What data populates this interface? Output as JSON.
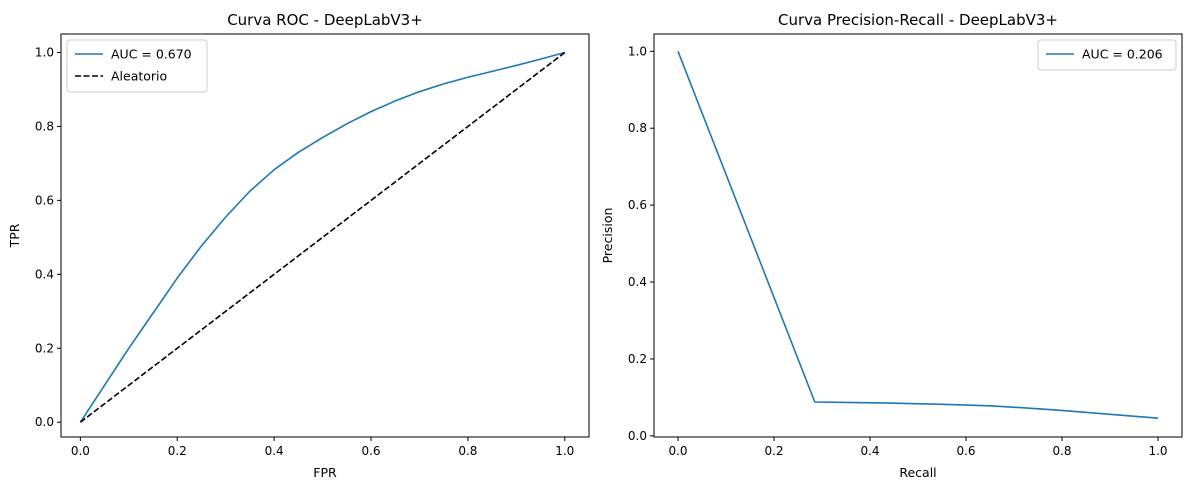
{
  "chart_data": [
    {
      "type": "line",
      "title": "Curva ROC - DeepLabV3+",
      "xlabel": "FPR",
      "ylabel": "TPR",
      "xlim": [
        -0.04,
        1.05
      ],
      "ylim": [
        -0.04,
        1.05
      ],
      "xticks": [
        0.0,
        0.2,
        0.4,
        0.6,
        0.8,
        1.0
      ],
      "yticks": [
        0.0,
        0.2,
        0.4,
        0.6,
        0.8,
        1.0
      ],
      "xtick_labels": [
        "0.0",
        "0.2",
        "0.4",
        "0.6",
        "0.8",
        "1.0"
      ],
      "ytick_labels": [
        "0.0",
        "0.2",
        "0.4",
        "0.6",
        "0.8",
        "1.0"
      ],
      "grid": false,
      "legend_position": "top-left",
      "series": [
        {
          "name": "AUC = 0.670",
          "color": "#1f77b4",
          "dash": "solid",
          "x": [
            0.0,
            0.05,
            0.1,
            0.15,
            0.2,
            0.25,
            0.3,
            0.35,
            0.4,
            0.45,
            0.5,
            0.55,
            0.6,
            0.65,
            0.7,
            0.75,
            0.8,
            0.85,
            0.9,
            0.95,
            1.0
          ],
          "y": [
            0.0,
            0.1,
            0.2,
            0.295,
            0.39,
            0.477,
            0.555,
            0.625,
            0.683,
            0.73,
            0.77,
            0.807,
            0.84,
            0.869,
            0.894,
            0.915,
            0.933,
            0.949,
            0.965,
            0.982,
            1.0
          ]
        },
        {
          "name": "Aleatorio",
          "color": "#000000",
          "dash": "dashed",
          "x": [
            0.0,
            1.0
          ],
          "y": [
            0.0,
            1.0
          ]
        }
      ]
    },
    {
      "type": "line",
      "title": "Curva Precision-Recall - DeepLabV3+",
      "xlabel": "Recall",
      "ylabel": "Precision",
      "xlim": [
        -0.05,
        1.05
      ],
      "ylim": [
        -0.003,
        1.045
      ],
      "xticks": [
        0.0,
        0.2,
        0.4,
        0.6,
        0.8,
        1.0
      ],
      "yticks": [
        0.0,
        0.2,
        0.4,
        0.6,
        0.8,
        1.0
      ],
      "xtick_labels": [
        "0.0",
        "0.2",
        "0.4",
        "0.6",
        "0.8",
        "1.0"
      ],
      "ytick_labels": [
        "0.0",
        "0.2",
        "0.4",
        "0.6",
        "0.8",
        "1.0"
      ],
      "grid": false,
      "legend_position": "top-right",
      "series": [
        {
          "name": "AUC = 0.206",
          "color": "#1f77b4",
          "dash": "solid",
          "x": [
            0.0,
            0.285,
            0.35,
            0.45,
            0.55,
            0.65,
            0.72,
            0.8,
            0.9,
            1.0
          ],
          "y": [
            1.0,
            0.088,
            0.087,
            0.085,
            0.082,
            0.078,
            0.073,
            0.066,
            0.056,
            0.046
          ]
        }
      ]
    }
  ]
}
